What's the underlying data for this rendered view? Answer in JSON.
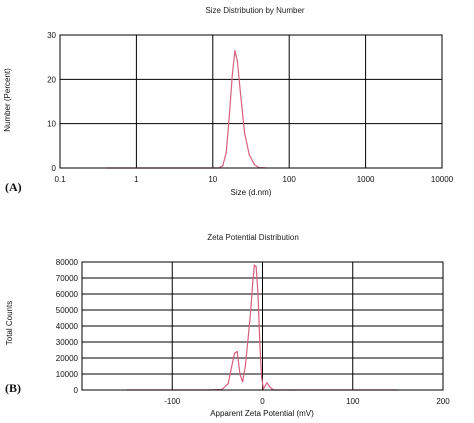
{
  "chart_data": [
    {
      "panel_label": "(A)",
      "type": "line",
      "title": "Size Distribution by Number",
      "xlabel": "Size (d.nm)",
      "ylabel": "Number (Percent)",
      "xscale": "log",
      "xlim": [
        0.1,
        10000
      ],
      "ylim": [
        0,
        30
      ],
      "x_ticks": [
        "0.1",
        "1",
        "10",
        "100",
        "1000",
        "10000"
      ],
      "y_ticks": [
        "0",
        "10",
        "20",
        "30"
      ],
      "grid": true,
      "series": [
        {
          "color": "#d6607d",
          "x": [
            0.4,
            0.5,
            0.7,
            1,
            2,
            4,
            7,
            10,
            12,
            13.5,
            15,
            16.5,
            18,
            19.5,
            21,
            23,
            26,
            30,
            35,
            40,
            50
          ],
          "y": [
            0,
            0,
            0,
            0,
            0,
            0,
            0,
            0,
            0,
            0.5,
            3.5,
            12,
            21,
            26.5,
            24,
            17,
            8,
            3,
            0.8,
            0.1,
            0
          ]
        }
      ]
    },
    {
      "panel_label": "(B)",
      "type": "line",
      "title": "Zeta Potential Distribution",
      "xlabel": "Apparent Zeta Potential (mV)",
      "ylabel": "Total Counts",
      "xlim": [
        -200,
        200
      ],
      "ylim": [
        0,
        80000
      ],
      "x_ticks": [
        "-100",
        "0",
        "100",
        "200"
      ],
      "y_ticks": [
        "0",
        "10000",
        "20000",
        "30000",
        "40000",
        "50000",
        "60000",
        "70000",
        "80000"
      ],
      "grid": true,
      "series": [
        {
          "color": "#d6607d",
          "x": [
            -150,
            -100,
            -60,
            -45,
            -38,
            -34,
            -31,
            -28,
            -25,
            -22,
            -19,
            -16,
            -13,
            -11,
            -9,
            -7,
            -5,
            -3,
            -1,
            1,
            5,
            8,
            12,
            30,
            150
          ],
          "y": [
            0,
            0,
            0,
            300,
            4000,
            15000,
            23000,
            24000,
            10000,
            5000,
            15000,
            32000,
            50000,
            66000,
            78000,
            77000,
            60000,
            30000,
            8000,
            800,
            4500,
            2000,
            0,
            0,
            0
          ]
        }
      ]
    }
  ]
}
